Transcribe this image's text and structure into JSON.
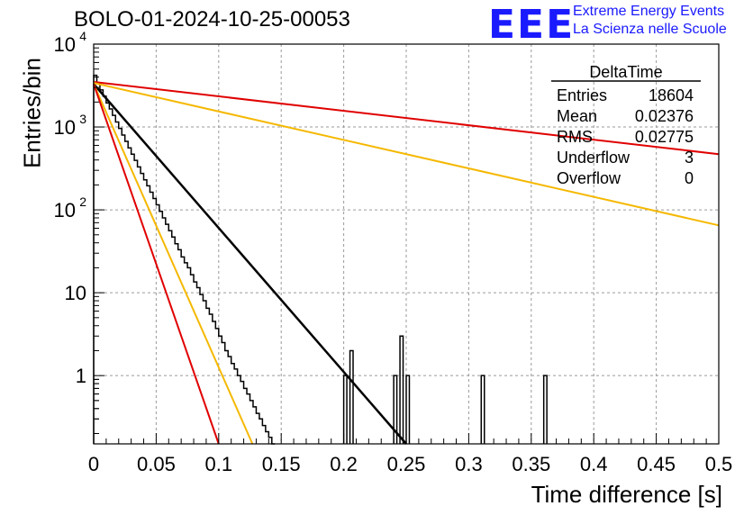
{
  "header": {
    "run_title": "BOLO-01-2024-10-25-00053",
    "logo_text": "EEE",
    "logo_line1": "Extreme Energy Events",
    "logo_line2": "La Scienza nelle Scuole"
  },
  "stats": {
    "name": "DeltaTime",
    "rows": [
      {
        "label": "Entries",
        "value": "18604"
      },
      {
        "label": "Mean",
        "value": "0.02376"
      },
      {
        "label": "RMS",
        "value": "0.02775"
      },
      {
        "label": "Underflow",
        "value": "3"
      },
      {
        "label": "Overflow",
        "value": "0"
      }
    ]
  },
  "colors": {
    "histogram": "#000000",
    "fit": "#000000",
    "red_curve": "#e00000",
    "yellow_curve": "#f5b800",
    "grid": "#9a9a9a"
  },
  "chart_data": {
    "type": "line",
    "xlabel": "Time difference [s]",
    "ylabel": "Entries/bin",
    "xlim": [
      0,
      0.5
    ],
    "ylim": [
      0.15,
      10000
    ],
    "y_scale": "log",
    "grid": true,
    "x_ticks": [
      "0",
      "0.05",
      "0.1",
      "0.15",
      "0.2",
      "0.25",
      "0.3",
      "0.35",
      "0.4",
      "0.45",
      "0.5"
    ],
    "y_ticks": [
      {
        "value": 1,
        "label": "1"
      },
      {
        "value": 10,
        "label": "10"
      },
      {
        "value": 100,
        "label": "10",
        "exp": "2"
      },
      {
        "value": 1000,
        "label": "10",
        "exp": "3"
      },
      {
        "value": 10000,
        "label": "10",
        "exp": "4"
      }
    ],
    "histogram": {
      "bin_width": 0.0025,
      "x_start": 0,
      "values": [
        4200,
        3400,
        2800,
        2350,
        1950,
        1650,
        1380,
        1150,
        960,
        800,
        670,
        560,
        470,
        395,
        330,
        275,
        230,
        195,
        163,
        137,
        115,
        96,
        80,
        67,
        56,
        47,
        39,
        33,
        27,
        23,
        20,
        16.5,
        13.5,
        11.5,
        9.5,
        8,
        6.5,
        5.5,
        4.5,
        3.7,
        3,
        2.5,
        2,
        1.7,
        1.4,
        1.2,
        1.0,
        0.85,
        0.7,
        0.6,
        0.5,
        0.42,
        0.35,
        0.3,
        0.25,
        0.21,
        0.18,
        0.15
      ],
      "note_points": [
        {
          "x": 0.2,
          "y": 1
        },
        {
          "x": 0.205,
          "y": 2
        },
        {
          "x": 0.24,
          "y": 1
        },
        {
          "x": 0.245,
          "y": 3
        },
        {
          "x": 0.25,
          "y": 1
        },
        {
          "x": 0.31,
          "y": 1
        },
        {
          "x": 0.36,
          "y": 1
        }
      ]
    },
    "series": [
      {
        "name": "fit",
        "color": "#000000",
        "points": [
          [
            0,
            3300
          ],
          [
            0.25,
            0.15
          ]
        ]
      },
      {
        "name": "",
        "color": "#e00000",
        "points": [
          [
            0,
            3500
          ],
          [
            0.5,
            470
          ]
        ]
      },
      {
        "name": "",
        "color": "#f5b800",
        "points": [
          [
            0,
            3400
          ],
          [
            0.5,
            65
          ]
        ]
      },
      {
        "name": "",
        "color": "#f5b800",
        "points": [
          [
            0,
            3300
          ],
          [
            0.127,
            0.15
          ]
        ]
      },
      {
        "name": "",
        "color": "#e00000",
        "points": [
          [
            0,
            3300
          ],
          [
            0.1,
            0.15
          ]
        ]
      }
    ]
  }
}
